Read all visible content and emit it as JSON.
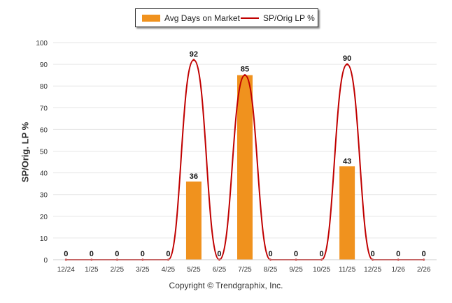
{
  "chart_data": {
    "type": "bar+line",
    "categories": [
      "12/24",
      "1/25",
      "2/25",
      "3/25",
      "4/25",
      "5/25",
      "6/25",
      "7/25",
      "8/25",
      "9/25",
      "10/25",
      "11/25",
      "12/25",
      "1/26",
      "2/26"
    ],
    "series": [
      {
        "name": "Avg Days on Market",
        "type": "bar",
        "values": [
          0,
          0,
          0,
          0,
          0,
          36,
          0,
          85,
          0,
          0,
          0,
          43,
          0,
          0,
          0
        ],
        "color": "#f0921e"
      },
      {
        "name": "SP/Orig LP %",
        "type": "line",
        "values": [
          0,
          0,
          0,
          0,
          0,
          92,
          0,
          85,
          0,
          0,
          0,
          90,
          0,
          0,
          0
        ],
        "color": "#c00000"
      }
    ],
    "data_labels": [
      "0",
      "0",
      "0",
      "0",
      "0",
      "92",
      "0",
      "85",
      "0",
      "0",
      "0",
      "90",
      "0",
      "0",
      "0"
    ],
    "bar_labels": [
      "36",
      "43"
    ],
    "ylabel": "SP/Orig. LP %",
    "ylim": [
      0,
      100
    ],
    "yticks": [
      0,
      10,
      20,
      30,
      40,
      50,
      60,
      70,
      80,
      90,
      100
    ],
    "grid": true,
    "legend_position": "top-center"
  },
  "legend": {
    "bar_label": "Avg Days on Market",
    "line_label": "SP/Orig LP %"
  },
  "copyright": "Copyright © Trendgraphix, Inc."
}
